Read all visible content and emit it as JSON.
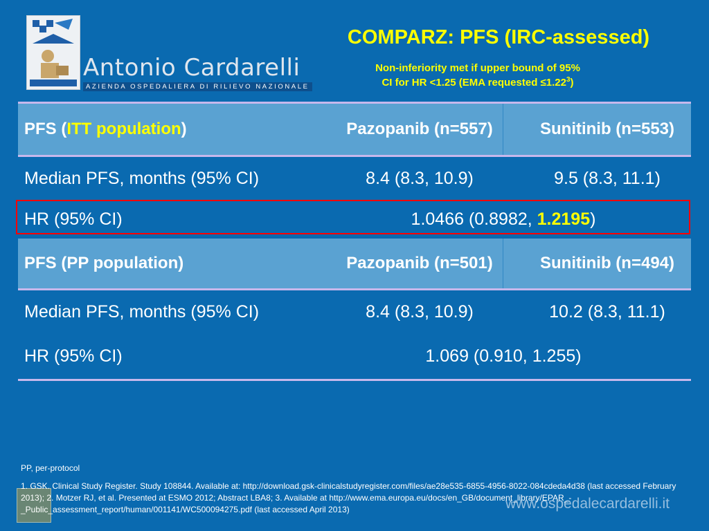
{
  "logo": {
    "name": "Antonio Cardarelli",
    "subtitle": "AZIENDA OSPEDALIERA DI RILIEVO NAZIONALE"
  },
  "title": "COMPARZ: PFS (IRC-assessed)",
  "subtitle": {
    "line1": "Non-inferiority met if upper bound of 95%",
    "line2": "CI for HR <1.25 (EMA requested ≤1.22",
    "sup": "3",
    "tail": ")"
  },
  "itt": {
    "header": {
      "pre": "PFS (",
      "highlight": "ITT population",
      "post": ")",
      "col_pazopanib": "Pazopanib (n=557)",
      "col_sunitinib": "Sunitinib (n=553)"
    },
    "median": {
      "label": "Median PFS, months (95% CI)",
      "pazopanib": "8.4 (8.3, 10.9)",
      "sunitinib": "9.5 (8.3, 11.1)"
    },
    "hr": {
      "label": "HR (95% CI)",
      "value_pre": "1.0466 (0.8982, ",
      "value_highlight": "1.2195",
      "value_post": ")"
    }
  },
  "pp": {
    "header": {
      "label": "PFS (PP population)",
      "col_pazopanib": "Pazopanib (n=501)",
      "col_sunitinib": "Sunitinib (n=494)"
    },
    "median": {
      "label": "Median PFS, months (95% CI)",
      "pazopanib": "8.4 (8.3, 10.9)",
      "sunitinib": "10.2 (8.3, 11.1)"
    },
    "hr": {
      "label": "HR (95% CI)",
      "value": "1.069 (0.910, 1.255)"
    }
  },
  "footnote": "PP, per-protocol",
  "references": "1. GSK. Clinical Study Register. Study 108844. Available at: http://download.gsk-clinicalstudyregister.com/files/ae28e535-6855-4956-8022-084cdeda4d38 (last accessed February 2013); 2. Motzer RJ, et al. Presented at ESMO 2012; Abstract LBA8; 3. Available at http://www.ema.europa.eu/docs/en_GB/document_library/EPAR_-_Public_assessment_report/human/001141/WC500094275.pdf (last accessed April 2013)",
  "website": "www.ospedalecardarelli.it",
  "colors": {
    "background": "#0a6ab0",
    "header_row": "#5aa2d2",
    "accent": "#ffff00",
    "highlight_box": "#ff0000",
    "separator": "#c7b8ec"
  }
}
